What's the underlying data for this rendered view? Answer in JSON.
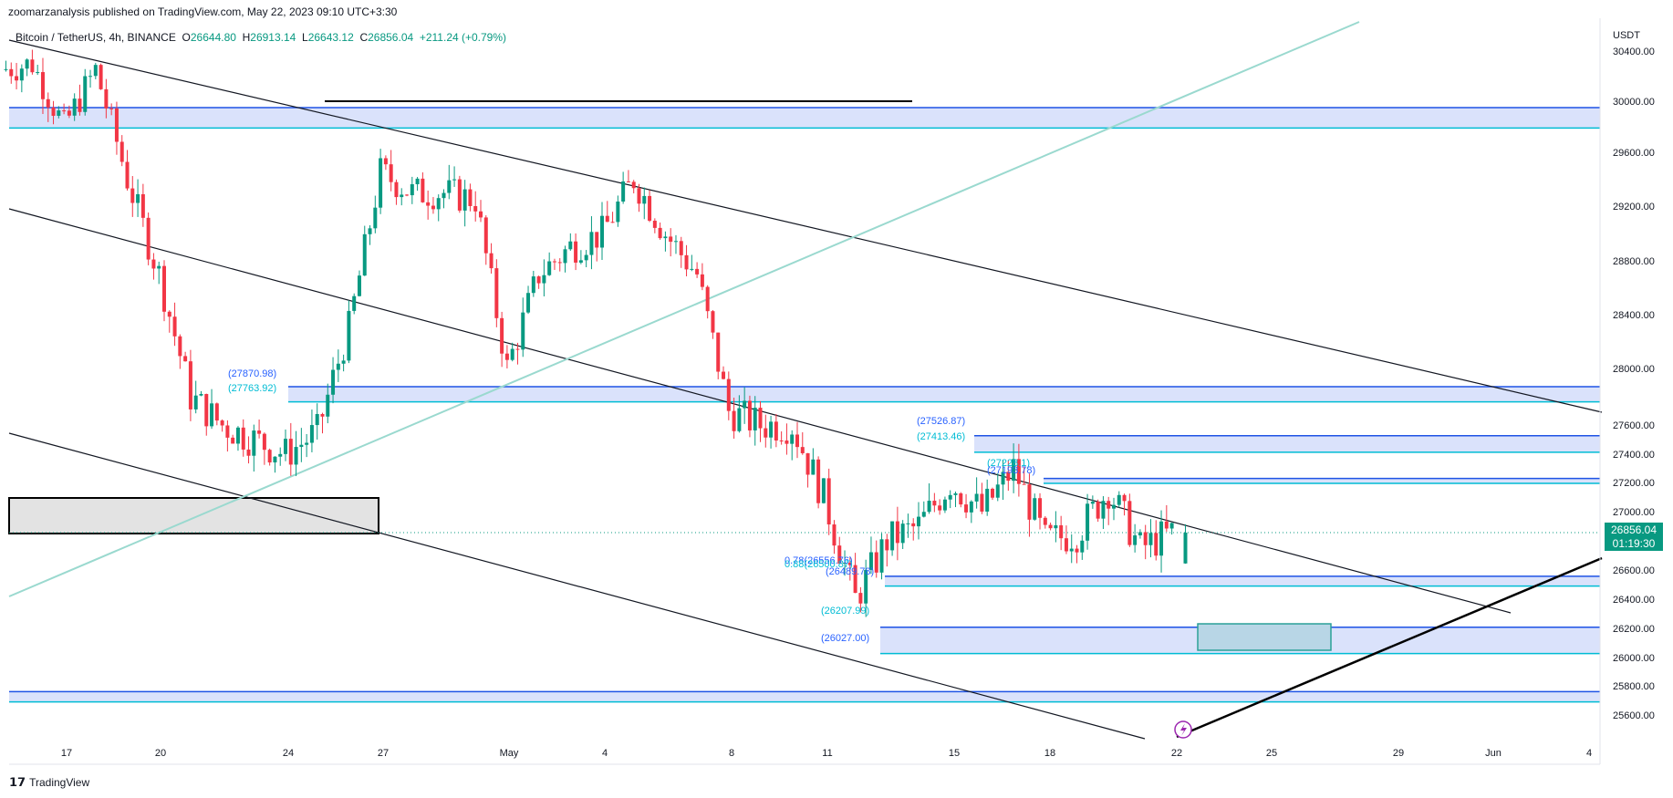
{
  "header": {
    "publisher": "zoomarzanalysis published on TradingView.com, May 22, 2023 09:10 UTC+3:30"
  },
  "legend": {
    "symbol": "Bitcoin / TetherUS, 4h, BINANCE",
    "o_label": "O",
    "o": "26644.80",
    "h_label": "H",
    "h": "26913.14",
    "l_label": "L",
    "l": "26643.12",
    "c_label": "C",
    "c": "26856.04",
    "change": "+211.24 (+0.79%)"
  },
  "axis": {
    "unit": "USDT",
    "y_ticks": [
      "30400.00",
      "30000.00",
      "29600.00",
      "29200.00",
      "28800.00",
      "28400.00",
      "28000.00",
      "27600.00",
      "27400.00",
      "27200.00",
      "27000.00",
      "26600.00",
      "26400.00",
      "26200.00",
      "26000.00",
      "25800.00",
      "25600.00"
    ],
    "x_ticks": [
      "17",
      "20",
      "24",
      "27",
      "May",
      "4",
      "8",
      "11",
      "15",
      "18",
      "22",
      "25",
      "29",
      "Jun",
      "4"
    ]
  },
  "price_tag": {
    "price": "26856.04",
    "countdown": "01:19:30"
  },
  "annotations": [
    {
      "text": "(27870.98)",
      "color": "#2962ff"
    },
    {
      "text": "(27763.92)",
      "color": "#00bcd4"
    },
    {
      "text": "(27526.87)",
      "color": "#2962ff"
    },
    {
      "text": "(27413.46)",
      "color": "#00bcd4"
    },
    {
      "text": "(27228.1)",
      "color": "#00bcd4"
    },
    {
      "text": "(27193.78)",
      "color": "#2962ff"
    },
    {
      "text": "0.78(26556.76)",
      "color": "#2962ff"
    },
    {
      "text": "0.88(26500.87)",
      "color": "#00bcd4"
    },
    {
      "text": "(26489.78)",
      "color": "#2962ff"
    },
    {
      "text": "(26207.99)",
      "color": "#00bcd4"
    },
    {
      "text": "(26027.00)",
      "color": "#2962ff"
    }
  ],
  "footer": {
    "brand": "TradingView"
  },
  "chart_data": {
    "type": "candlestick",
    "symbol": "BTCUSDT",
    "interval": "4h",
    "ylim": [
      25550,
      30500
    ],
    "y_scale": "nonlinear (as printed by the axis ticks)",
    "x_range_dates": [
      "2023-04-15",
      "2023-06-04"
    ],
    "last_close": 26856.04,
    "grid": false,
    "colors": {
      "up": "#089981",
      "down": "#f23645",
      "zone_fill": "#d1dbfa",
      "zone_edge": "#1e53e5",
      "zone_edge2": "#00bcd4",
      "trendline": "#131722",
      "green_line": "#9ad9cf"
    },
    "zones": [
      {
        "from": 29790,
        "to": 29950
      },
      {
        "from": 27763.92,
        "to": 27870.98
      },
      {
        "from": 27413.46,
        "to": 27526.87
      },
      {
        "from": 27193.78,
        "to": 27228.1
      },
      {
        "from": 26489.78,
        "to": 26556.76
      },
      {
        "from": 26027.0,
        "to": 26207.99
      },
      {
        "from": 25690,
        "to": 25760
      }
    ],
    "close_path": [
      {
        "x": "2023-04-15",
        "c": 30250
      },
      {
        "x": "2023-04-16",
        "c": 30300
      },
      {
        "x": "2023-04-17",
        "c": 29800
      },
      {
        "x": "2023-04-18",
        "c": 30250
      },
      {
        "x": "2023-04-19",
        "c": 29400
      },
      {
        "x": "2023-04-20",
        "c": 28700
      },
      {
        "x": "2023-04-21",
        "c": 27800
      },
      {
        "x": "2023-04-22",
        "c": 27600
      },
      {
        "x": "2023-04-23",
        "c": 27500
      },
      {
        "x": "2023-04-24",
        "c": 27400
      },
      {
        "x": "2023-04-25",
        "c": 27550
      },
      {
        "x": "2023-04-26",
        "c": 28300
      },
      {
        "x": "2023-04-27",
        "c": 29450
      },
      {
        "x": "2023-04-28",
        "c": 29300
      },
      {
        "x": "2023-04-29",
        "c": 29300
      },
      {
        "x": "2023-04-30",
        "c": 29250
      },
      {
        "x": "2023-05-01",
        "c": 28000
      },
      {
        "x": "2023-05-02",
        "c": 28700
      },
      {
        "x": "2023-05-03",
        "c": 28900
      },
      {
        "x": "2023-05-04",
        "c": 29000
      },
      {
        "x": "2023-05-05",
        "c": 29400
      },
      {
        "x": "2023-05-06",
        "c": 29000
      },
      {
        "x": "2023-05-07",
        "c": 28700
      },
      {
        "x": "2023-05-08",
        "c": 27700
      },
      {
        "x": "2023-05-09",
        "c": 27600
      },
      {
        "x": "2023-05-10",
        "c": 27600
      },
      {
        "x": "2023-05-11",
        "c": 27100
      },
      {
        "x": "2023-05-12",
        "c": 26400
      },
      {
        "x": "2023-05-13",
        "c": 26800
      },
      {
        "x": "2023-05-14",
        "c": 26900
      },
      {
        "x": "2023-05-15",
        "c": 27200
      },
      {
        "x": "2023-05-16",
        "c": 27000
      },
      {
        "x": "2023-05-17",
        "c": 27300
      },
      {
        "x": "2023-05-18",
        "c": 26800
      },
      {
        "x": "2023-05-19",
        "c": 26850
      },
      {
        "x": "2023-05-20",
        "c": 27150
      },
      {
        "x": "2023-05-21",
        "c": 26750
      },
      {
        "x": "2023-05-22",
        "c": 26856.04
      }
    ]
  }
}
